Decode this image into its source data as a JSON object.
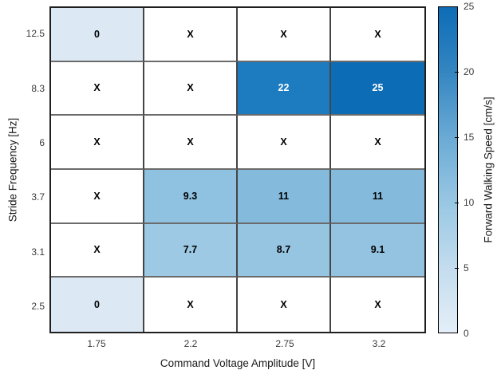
{
  "chart_data": {
    "type": "heatmap",
    "title": "",
    "xlabel": "Command Voltage Amplitude [V]",
    "ylabel": "Stride Frequency [Hz]",
    "x_categories": [
      "1.75",
      "2.2",
      "2.75",
      "3.2"
    ],
    "y_categories": [
      "12.5",
      "8.3",
      "6",
      "3.7",
      "3.1",
      "2.5"
    ],
    "missing_marker": "X",
    "cells": [
      [
        {
          "label": "0",
          "value": 0,
          "bg": "#dce9f5",
          "fg": "#000000"
        },
        {
          "label": "X",
          "value": null,
          "bg": "#ffffff",
          "fg": "#000000"
        },
        {
          "label": "X",
          "value": null,
          "bg": "#ffffff",
          "fg": "#000000"
        },
        {
          "label": "X",
          "value": null,
          "bg": "#ffffff",
          "fg": "#000000"
        }
      ],
      [
        {
          "label": "X",
          "value": null,
          "bg": "#ffffff",
          "fg": "#000000"
        },
        {
          "label": "X",
          "value": null,
          "bg": "#ffffff",
          "fg": "#000000"
        },
        {
          "label": "22",
          "value": 22,
          "bg": "#1d7bc0",
          "fg": "#ffffff"
        },
        {
          "label": "25",
          "value": 25,
          "bg": "#0d6cb6",
          "fg": "#ffffff"
        }
      ],
      [
        {
          "label": "X",
          "value": null,
          "bg": "#ffffff",
          "fg": "#000000"
        },
        {
          "label": "X",
          "value": null,
          "bg": "#ffffff",
          "fg": "#000000"
        },
        {
          "label": "X",
          "value": null,
          "bg": "#ffffff",
          "fg": "#000000"
        },
        {
          "label": "X",
          "value": null,
          "bg": "#ffffff",
          "fg": "#000000"
        }
      ],
      [
        {
          "label": "X",
          "value": null,
          "bg": "#ffffff",
          "fg": "#000000"
        },
        {
          "label": "9.3",
          "value": 9.3,
          "bg": "#8fc1e0",
          "fg": "#000000"
        },
        {
          "label": "11",
          "value": 11,
          "bg": "#84bbdd",
          "fg": "#000000"
        },
        {
          "label": "11",
          "value": 11,
          "bg": "#84bbdd",
          "fg": "#000000"
        }
      ],
      [
        {
          "label": "X",
          "value": null,
          "bg": "#ffffff",
          "fg": "#000000"
        },
        {
          "label": "7.7",
          "value": 7.7,
          "bg": "#9dc9e4",
          "fg": "#000000"
        },
        {
          "label": "8.7",
          "value": 8.7,
          "bg": "#96c5e2",
          "fg": "#000000"
        },
        {
          "label": "9.1",
          "value": 9.1,
          "bg": "#93c3e1",
          "fg": "#000000"
        }
      ],
      [
        {
          "label": "0",
          "value": 0,
          "bg": "#dce9f5",
          "fg": "#000000"
        },
        {
          "label": "X",
          "value": null,
          "bg": "#ffffff",
          "fg": "#000000"
        },
        {
          "label": "X",
          "value": null,
          "bg": "#ffffff",
          "fg": "#000000"
        },
        {
          "label": "X",
          "value": null,
          "bg": "#ffffff",
          "fg": "#000000"
        }
      ]
    ],
    "colorbar": {
      "label": "Forward Walking Speed [cm/s]",
      "min": 0,
      "max": 25,
      "ticks": [
        "0",
        "5",
        "10",
        "15",
        "20",
        "25"
      ],
      "gradient_stops": [
        {
          "value": 0,
          "color": "#e4eff8"
        },
        {
          "value": 5,
          "color": "#c3dcee"
        },
        {
          "value": 10,
          "color": "#98c7e3"
        },
        {
          "value": 15,
          "color": "#6aaad5"
        },
        {
          "value": 20,
          "color": "#3486c1"
        },
        {
          "value": 25,
          "color": "#0d6cb6"
        }
      ]
    }
  }
}
